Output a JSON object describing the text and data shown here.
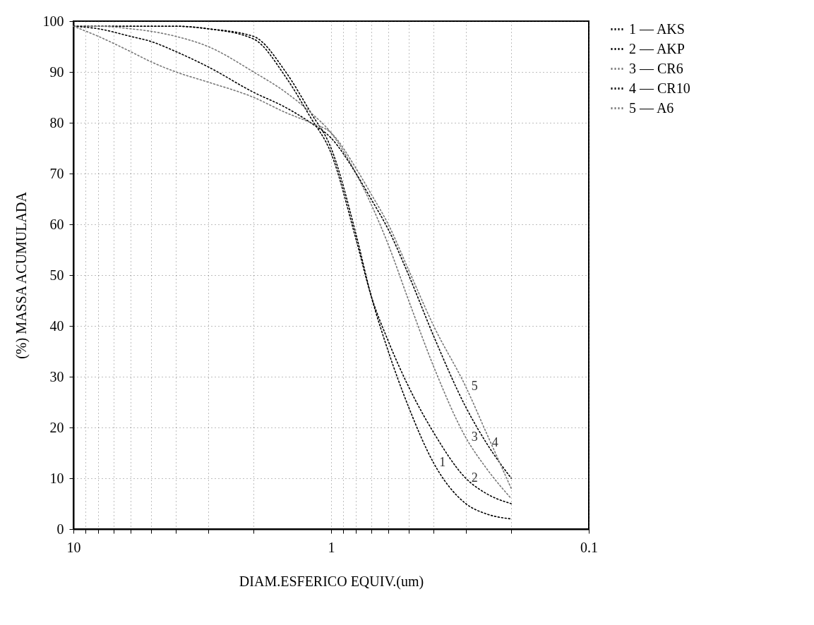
{
  "chart_data": {
    "type": "line",
    "xlabel": "DIAM.ESFERICO EQUIV.(um)",
    "ylabel": "(%) MASSA ACUMULADA",
    "log": "x",
    "xlim": [
      10,
      0.1
    ],
    "ylim": [
      0,
      100
    ],
    "xticks": [
      10,
      {
        "value": 9,
        "label": null
      },
      {
        "value": 8,
        "label": null
      },
      {
        "value": 7,
        "label": null
      },
      {
        "value": 6,
        "label": null
      },
      {
        "value": 5,
        "label": null
      },
      {
        "value": 4,
        "label": null
      },
      {
        "value": 3,
        "label": null
      },
      {
        "value": 2,
        "label": null
      },
      1,
      {
        "value": 0.9,
        "label": null
      },
      {
        "value": 0.8,
        "label": null
      },
      {
        "value": 0.7,
        "label": null
      },
      {
        "value": 0.6,
        "label": null
      },
      {
        "value": 0.5,
        "label": null
      },
      {
        "value": 0.4,
        "label": null
      },
      {
        "value": 0.3,
        "label": null
      },
      {
        "value": 0.2,
        "label": null
      },
      0.1
    ],
    "yticks": [
      0,
      10,
      20,
      30,
      40,
      50,
      60,
      70,
      80,
      90,
      100
    ],
    "grid": true,
    "legend": "top right",
    "marker": "none",
    "line_style": "dotted",
    "x": [
      10,
      8,
      6,
      5,
      4,
      3,
      2,
      1.5,
      1.2,
      1,
      0.8,
      0.7,
      0.6,
      0.5,
      0.4,
      0.3,
      0.25,
      0.2
    ],
    "series": [
      {
        "name": "1 — AKS",
        "color": "#000000",
        "values": [
          99,
          99,
          99,
          99,
          99,
          98.5,
          97,
          90,
          82,
          75,
          58,
          46,
          35,
          24,
          13,
          5,
          3,
          2
        ]
      },
      {
        "name": "2 — AKP",
        "color": "#000000",
        "values": [
          99,
          99,
          99,
          99,
          99,
          98.5,
          96.5,
          89,
          81,
          74,
          57,
          46,
          37,
          28,
          19,
          10,
          7,
          5
        ]
      },
      {
        "name": "3 — CR6",
        "color": "#777777",
        "values": [
          99,
          99,
          98.5,
          98,
          97,
          95,
          90,
          86,
          82,
          78,
          70,
          64,
          56,
          45,
          32,
          18,
          12,
          6
        ]
      },
      {
        "name": "4 — CR10",
        "color": "#000000",
        "values": [
          99,
          98.5,
          97,
          96,
          94,
          91,
          86,
          83,
          80,
          77,
          70,
          65,
          59,
          50,
          38,
          24,
          17,
          10
        ]
      },
      {
        "name": "5 — A6",
        "color": "#777777",
        "values": [
          99,
          97,
          94,
          92,
          90,
          88,
          85,
          82,
          80,
          78,
          71,
          66,
          60,
          51,
          40,
          28,
          19,
          8
        ]
      }
    ],
    "annotations": [
      {
        "text": "5",
        "x": 0.3,
        "y": 28
      },
      {
        "text": "3",
        "x": 0.3,
        "y": 18
      },
      {
        "text": "4",
        "x": 0.25,
        "y": 17
      },
      {
        "text": "2",
        "x": 0.3,
        "y": 10
      },
      {
        "text": "1",
        "x": 0.4,
        "y": 13
      }
    ]
  }
}
